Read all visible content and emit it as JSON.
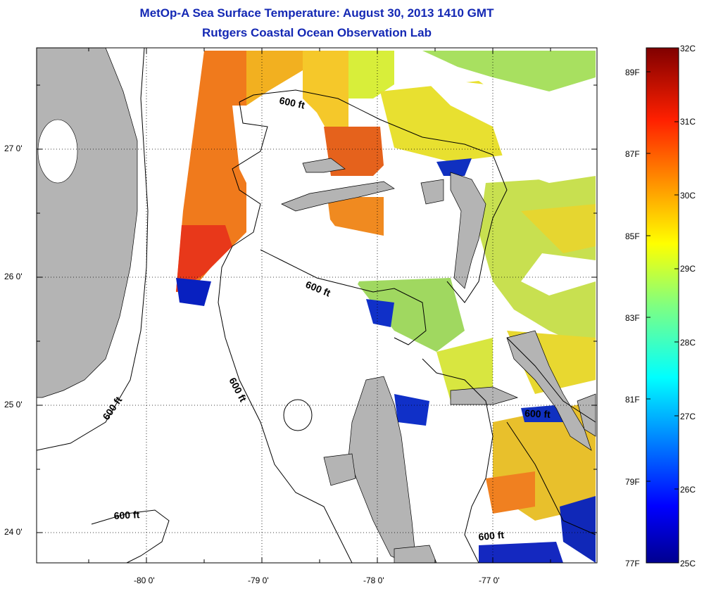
{
  "title": {
    "line1": "MetOp-A Sea Surface Temperature:  August 30, 2013 1410 GMT",
    "line2": "Rutgers Coastal Ocean Observation Lab"
  },
  "axes": {
    "x_ticks": [
      "-80 0'",
      "-79 0'",
      "-78 0'",
      "-77 0'"
    ],
    "y_ticks": [
      "27 0'",
      "26 0'",
      "25 0'",
      "24 0'"
    ]
  },
  "contours": {
    "label": "600 ft"
  },
  "colorbar": {
    "celsius": [
      "32C",
      "31C",
      "30C",
      "29C",
      "28C",
      "27C",
      "26C",
      "25C"
    ],
    "fahrenheit": [
      "89F",
      "87F",
      "85F",
      "83F",
      "81F",
      "79F",
      "77F"
    ],
    "colors": [
      "#00008f",
      "#0000ff",
      "#0080ff",
      "#00ffff",
      "#80ff80",
      "#ffff00",
      "#ff8000",
      "#ff0000",
      "#800000"
    ]
  },
  "map_colors": {
    "land": "#b4b4b4",
    "water_clear": "#ffffff"
  }
}
